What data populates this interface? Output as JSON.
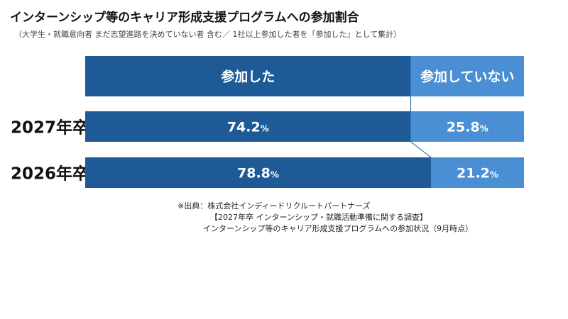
{
  "title": "インターンシップ等のキャリア形成支援プログラムへの参加割合",
  "subtitle": "（大学生・就職意向者 まだ志望進路を決めていない者 含む／ 1社以上参加した者を「参加した」として集計）",
  "chart_data": {
    "type": "bar",
    "stacked": "horizontal-100-percent",
    "unit": "%",
    "categories": [
      "2027年卒",
      "2026年卒"
    ],
    "series": [
      {
        "name": "参加した",
        "values": [
          74.2,
          78.8
        ],
        "color": "#1e5a96"
      },
      {
        "name": "参加していない",
        "values": [
          25.8,
          21.2
        ],
        "color": "#4a8fd4"
      }
    ],
    "legend_position": "top",
    "connector_lines": true
  },
  "source": {
    "line1": "※出典：株式会社インディードリクルートパートナーズ",
    "line2": "【2027年卒 インターンシップ・就職活動準備に関する調査】",
    "line3": "インターンシップ等のキャリア形成支援プログラムへの参加状況（9月時点）"
  }
}
